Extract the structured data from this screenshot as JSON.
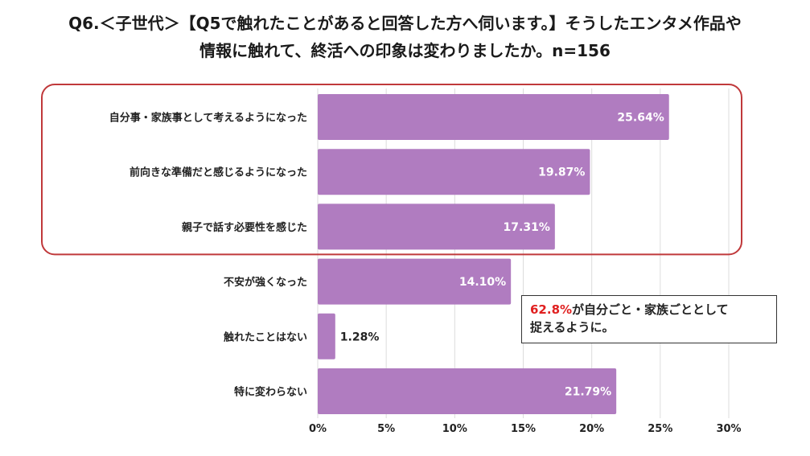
{
  "title": {
    "line1": "Q6.＜子世代＞【Q5で触れたことがあると回答した方へ伺います。】そうしたエンタメ作品や",
    "line2": "情報に触れて、終活への印象は変わりましたか。n=156"
  },
  "callout": {
    "highlight": "62.8%",
    "line1_rest": "が自分ごと・家族ごととして",
    "line2": "捉えるように。",
    "highlight_color": "#e02020"
  },
  "colors": {
    "bar": "#b07cc0",
    "highlight_border": "#c0393b",
    "grid": "#dcdcdc",
    "value_label_inside": "#ffffff",
    "value_label_outside": "#222222"
  },
  "chart_data": {
    "type": "bar",
    "orientation": "horizontal",
    "categories": [
      "自分事・家族事として考えるようになった",
      "前向きな準備だと感じるようになった",
      "親子で話す必要性を感じた",
      "不安が強くなった",
      "触れたことはない",
      "特に変わらない"
    ],
    "values": [
      25.64,
      19.87,
      17.31,
      14.1,
      1.28,
      21.79
    ],
    "value_labels": [
      "25.64%",
      "19.87%",
      "17.31%",
      "14.10%",
      "1.28%",
      "21.79%"
    ],
    "xlim": [
      0,
      30
    ],
    "xticks": [
      0,
      5,
      10,
      15,
      20,
      25,
      30
    ],
    "xtick_labels": [
      "0%",
      "5%",
      "10%",
      "15%",
      "20%",
      "25%",
      "30%"
    ],
    "grid": true,
    "highlighted_categories": [
      0,
      1,
      2
    ]
  }
}
